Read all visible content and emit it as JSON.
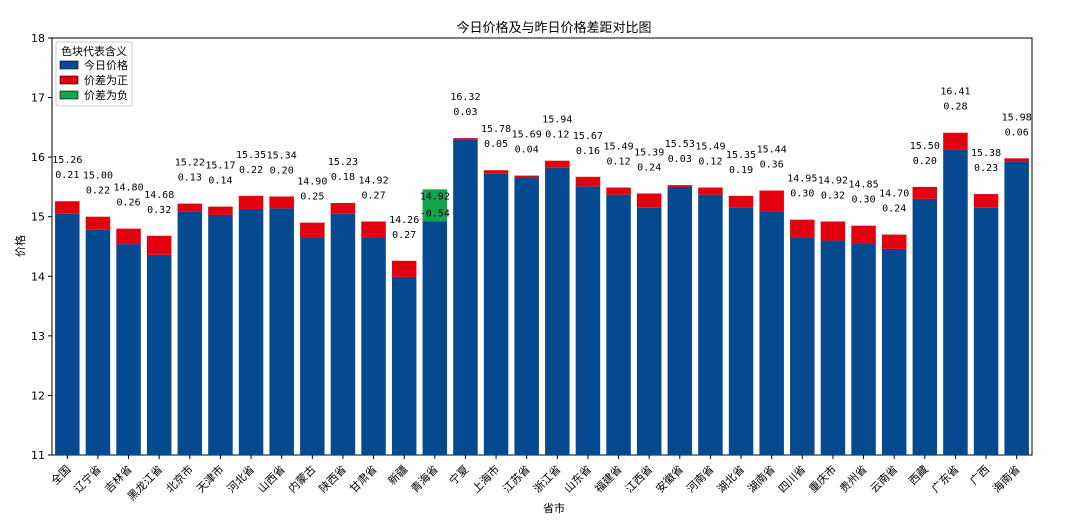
{
  "chart_data": {
    "type": "bar",
    "title": "今日价格及与昨日价格差距对比图",
    "xlabel": "省市",
    "ylabel": "价格",
    "ylim": [
      11,
      18
    ],
    "yticks": [
      "11",
      "12",
      "13",
      "14",
      "15",
      "16",
      "17",
      "18"
    ],
    "grid": false,
    "legend_position": "top-left",
    "legend": {
      "title": "色块代表含义",
      "items": [
        "今日价格",
        "价差为正",
        "价差为负"
      ]
    },
    "colors": {
      "today": "#054a91",
      "positive": "#e3000f",
      "negative": "#14a44d"
    },
    "categories": [
      "全国",
      "辽宁省",
      "吉林省",
      "黑龙江省",
      "北京市",
      "天津市",
      "河北省",
      "山西省",
      "内蒙古",
      "陕西省",
      "甘肃省",
      "新疆",
      "青海省",
      "宁夏",
      "上海市",
      "江苏省",
      "浙江省",
      "山东省",
      "福建省",
      "江西省",
      "安徽省",
      "河南省",
      "湖北省",
      "湖南省",
      "四川省",
      "重庆市",
      "贵州省",
      "云南省",
      "西藏",
      "广东省",
      "广西",
      "海南省"
    ],
    "series": [
      {
        "name": "今日价格",
        "values": [
          15.26,
          15.0,
          14.8,
          14.68,
          15.22,
          15.17,
          15.35,
          15.34,
          14.9,
          15.23,
          14.92,
          14.26,
          14.92,
          16.32,
          15.78,
          15.69,
          15.94,
          15.67,
          15.49,
          15.39,
          15.53,
          15.49,
          15.35,
          15.44,
          14.95,
          14.92,
          14.85,
          14.7,
          15.5,
          16.41,
          15.38,
          15.98
        ]
      },
      {
        "name": "价差",
        "values": [
          0.21,
          0.22,
          0.26,
          0.32,
          0.13,
          0.14,
          0.22,
          0.2,
          0.25,
          0.18,
          0.27,
          0.27,
          -0.54,
          0.03,
          0.05,
          0.04,
          0.12,
          0.16,
          0.12,
          0.24,
          0.03,
          0.12,
          0.19,
          0.36,
          0.3,
          0.32,
          0.3,
          0.24,
          0.2,
          0.28,
          0.23,
          0.06
        ]
      }
    ],
    "price_labels": [
      "15.26",
      "15.00",
      "14.80",
      "14.68",
      "15.22",
      "15.17",
      "15.35",
      "15.34",
      "14.90",
      "15.23",
      "14.92",
      "14.26",
      "14.92",
      "16.32",
      "15.78",
      "15.69",
      "15.94",
      "15.67",
      "15.49",
      "15.39",
      "15.53",
      "15.49",
      "15.35",
      "15.44",
      "14.95",
      "14.92",
      "14.85",
      "14.70",
      "15.50",
      "16.41",
      "15.38",
      "15.98"
    ],
    "diff_labels": [
      "0.21",
      "0.22",
      "0.26",
      "0.32",
      "0.13",
      "0.14",
      "0.22",
      "0.20",
      "0.25",
      "0.18",
      "0.27",
      "0.27",
      "-0.54",
      "0.03",
      "0.05",
      "0.04",
      "0.12",
      "0.16",
      "0.12",
      "0.24",
      "0.03",
      "0.12",
      "0.19",
      "0.36",
      "0.30",
      "0.32",
      "0.30",
      "0.24",
      "0.20",
      "0.28",
      "0.23",
      "0.06"
    ]
  }
}
